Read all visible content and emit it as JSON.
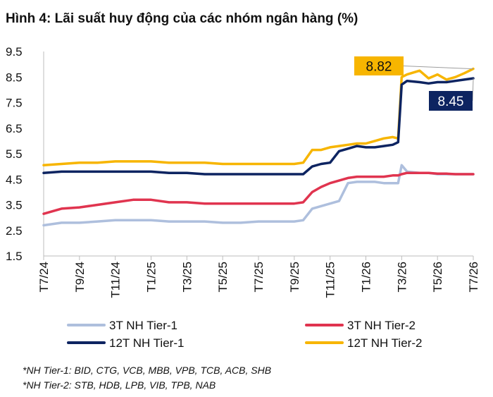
{
  "title": "Hình 4: Lãi suất huy động của các nhóm ngân hàng (%)",
  "notes": [
    "*NH Tier-1: BID, CTG, VCB, MBB, VPB, TCB, ACB, SHB",
    "*NH Tier-2: STB, HDB, LPB, VIB, TPB, NAB"
  ],
  "colors": {
    "tier1_3m": "#aebfdd",
    "tier2_3m": "#e0344f",
    "tier1_12m": "#0d2461",
    "tier2_12m": "#f7b500"
  },
  "chart_data": {
    "type": "line",
    "title": "Hình 4: Lãi suất huy động của các nhóm ngân hàng (%)",
    "xlabel": "",
    "ylabel": "",
    "ylim": [
      1.5,
      9.5
    ],
    "yticks": [
      "9.5",
      "8.5",
      "7.5",
      "6.5",
      "5.5",
      "4.5",
      "3.5",
      "2.5",
      "1.5"
    ],
    "ytick_values": [
      9.5,
      8.5,
      7.5,
      6.5,
      5.5,
      4.5,
      3.5,
      2.5,
      1.5
    ],
    "xticks": [
      "T7/24",
      "T9/24",
      "T11/24",
      "T1/25",
      "T3/25",
      "T5/25",
      "T7/25",
      "T9/25",
      "T11/25",
      "T1/26",
      "T3/26",
      "T5/26",
      "T7/26"
    ],
    "xtick_months": [
      0,
      2,
      4,
      6,
      8,
      10,
      12,
      14,
      16,
      18,
      20,
      22,
      24
    ],
    "x_months": [
      0,
      1,
      2,
      3,
      4,
      5,
      6,
      7,
      8,
      9,
      10,
      11,
      12,
      13,
      14,
      14.5,
      15,
      15.5,
      16,
      16.5,
      17,
      17.5,
      18,
      18.5,
      19,
      19.5,
      19.8,
      20,
      20.3,
      21,
      21.5,
      22,
      22.5,
      23,
      23.5,
      24
    ],
    "grid": false,
    "legend_position": "bottom",
    "series": [
      {
        "name": "3T NH Tier-1",
        "color": "#aebfdd",
        "values": [
          2.7,
          2.8,
          2.8,
          2.85,
          2.9,
          2.9,
          2.9,
          2.85,
          2.85,
          2.85,
          2.8,
          2.8,
          2.85,
          2.85,
          2.85,
          2.9,
          3.35,
          3.45,
          3.55,
          3.65,
          4.35,
          4.4,
          4.4,
          4.4,
          4.35,
          4.35,
          4.35,
          5.05,
          4.8,
          4.75,
          4.75,
          4.7,
          4.7,
          4.7,
          4.7,
          4.7
        ]
      },
      {
        "name": "3T NH Tier-2",
        "color": "#e0344f",
        "values": [
          3.15,
          3.35,
          3.4,
          3.5,
          3.6,
          3.7,
          3.7,
          3.6,
          3.6,
          3.55,
          3.55,
          3.55,
          3.55,
          3.55,
          3.55,
          3.6,
          4.0,
          4.2,
          4.35,
          4.45,
          4.55,
          4.6,
          4.6,
          4.6,
          4.6,
          4.65,
          4.65,
          4.7,
          4.75,
          4.75,
          4.75,
          4.72,
          4.72,
          4.7,
          4.7,
          4.7
        ]
      },
      {
        "name": "12T NH Tier-1",
        "color": "#0d2461",
        "values": [
          4.75,
          4.8,
          4.8,
          4.8,
          4.8,
          4.8,
          4.8,
          4.75,
          4.75,
          4.7,
          4.7,
          4.7,
          4.7,
          4.7,
          4.7,
          4.7,
          5.0,
          5.1,
          5.15,
          5.6,
          5.7,
          5.8,
          5.75,
          5.75,
          5.8,
          5.85,
          5.95,
          8.2,
          8.35,
          8.3,
          8.25,
          8.3,
          8.3,
          8.35,
          8.4,
          8.45
        ]
      },
      {
        "name": "12T NH Tier-2",
        "color": "#f7b500",
        "values": [
          5.05,
          5.1,
          5.15,
          5.15,
          5.2,
          5.2,
          5.2,
          5.15,
          5.15,
          5.15,
          5.1,
          5.1,
          5.1,
          5.1,
          5.1,
          5.15,
          5.65,
          5.65,
          5.75,
          5.8,
          5.85,
          5.9,
          5.9,
          6.0,
          6.1,
          6.15,
          6.1,
          8.5,
          8.6,
          8.75,
          8.45,
          8.6,
          8.4,
          8.5,
          8.65,
          8.82
        ]
      }
    ],
    "annotations": [
      {
        "label": "8.82",
        "series": "12T NH Tier-2",
        "value": 8.82
      },
      {
        "label": "8.45",
        "series": "12T NH Tier-1",
        "value": 8.45
      }
    ]
  }
}
